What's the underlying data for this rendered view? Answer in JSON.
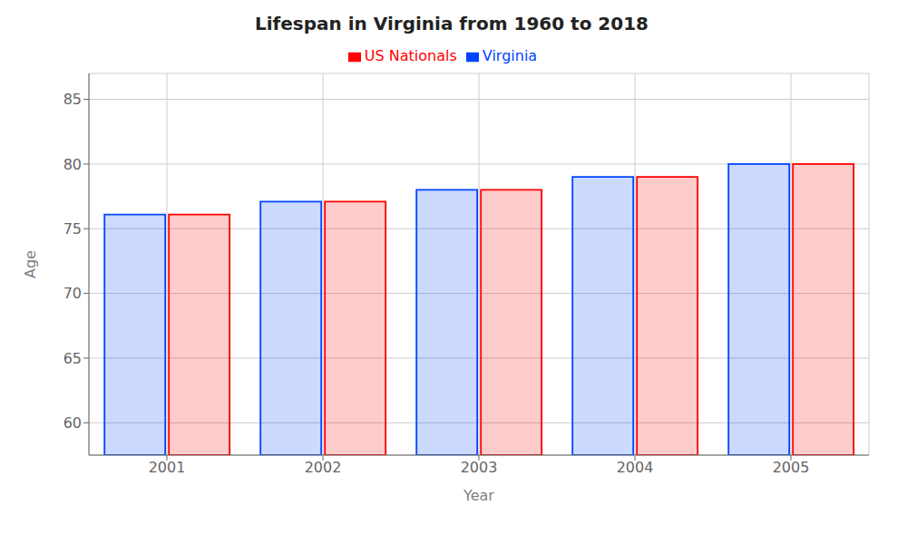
{
  "chart_data": {
    "type": "bar",
    "title": "Lifespan in Virginia from 1960 to 2018",
    "x_label": "Year",
    "y_label": "Age",
    "categories": [
      "2001",
      "2002",
      "2003",
      "2004",
      "2005"
    ],
    "series": [
      {
        "name": "Virginia",
        "color": "#0044ff",
        "values": [
          76.1,
          77.1,
          78.0,
          79.0,
          80.0
        ]
      },
      {
        "name": "US Nationals",
        "color": "#ff0000",
        "values": [
          76.1,
          77.1,
          78.0,
          79.0,
          80.0
        ]
      }
    ],
    "ylim": [
      57.5,
      87
    ],
    "yticks": [
      60,
      65,
      70,
      75,
      80,
      85
    ],
    "grid": true,
    "legend": "top"
  }
}
